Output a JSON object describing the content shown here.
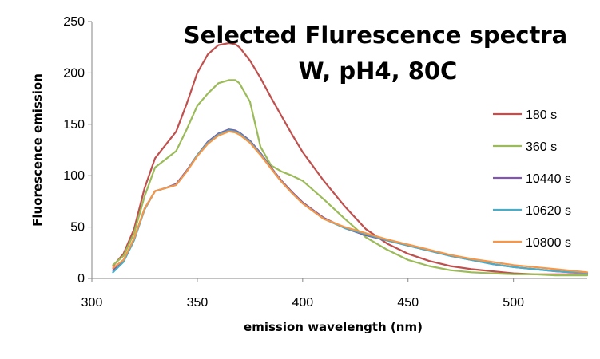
{
  "chart_data": {
    "type": "line",
    "title_lines": [
      "Selected Flurescence spectra",
      "W, pH4, 80C"
    ],
    "xlabel": "emission wavelength (nm)",
    "ylabel": "Fluorescence emission",
    "xlim": [
      300,
      535
    ],
    "ylim": [
      0,
      250
    ],
    "xticks": [
      300,
      350,
      400,
      450,
      500
    ],
    "yticks": [
      0,
      50,
      100,
      150,
      200,
      250
    ],
    "grid": false,
    "legend_position": "right",
    "series": [
      {
        "name": "180 s",
        "color": "#c0504d",
        "x": [
          310,
          315,
          320,
          325,
          330,
          335,
          340,
          345,
          350,
          355,
          360,
          365,
          368,
          370,
          375,
          380,
          385,
          390,
          395,
          400,
          410,
          420,
          430,
          440,
          450,
          460,
          470,
          480,
          490,
          500,
          510,
          520,
          535
        ],
        "y": [
          12,
          24,
          48,
          88,
          117,
          130,
          143,
          170,
          200,
          218,
          227,
          229,
          228,
          225,
          212,
          195,
          176,
          158,
          140,
          123,
          95,
          70,
          48,
          34,
          24,
          17,
          12,
          9,
          7,
          5,
          4,
          4,
          4
        ]
      },
      {
        "name": "360 s",
        "color": "#9bbb59",
        "x": [
          310,
          315,
          320,
          325,
          330,
          335,
          340,
          345,
          350,
          355,
          360,
          365,
          368,
          370,
          375,
          380,
          385,
          390,
          395,
          400,
          410,
          420,
          430,
          440,
          450,
          460,
          470,
          480,
          490,
          500,
          510,
          520,
          535
        ],
        "y": [
          13,
          22,
          44,
          80,
          108,
          116,
          124,
          145,
          168,
          180,
          190,
          193,
          193,
          190,
          172,
          128,
          110,
          104,
          100,
          95,
          77,
          58,
          40,
          28,
          18,
          12,
          8,
          6,
          5,
          4,
          4,
          3,
          3
        ]
      },
      {
        "name": "10440 s",
        "color": "#7f5aa2",
        "x": [
          310,
          315,
          320,
          325,
          330,
          335,
          340,
          345,
          350,
          355,
          360,
          365,
          368,
          370,
          375,
          380,
          385,
          390,
          395,
          400,
          410,
          420,
          430,
          440,
          450,
          460,
          470,
          480,
          490,
          500,
          510,
          520,
          535
        ],
        "y": [
          8,
          17,
          38,
          68,
          85,
          88,
          92,
          105,
          120,
          133,
          141,
          145,
          144,
          142,
          134,
          122,
          108,
          95,
          84,
          74,
          59,
          49,
          42,
          37,
          32,
          27,
          22,
          18,
          14,
          11,
          9,
          7,
          5
        ]
      },
      {
        "name": "10620 s",
        "color": "#4bacc6",
        "x": [
          310,
          315,
          320,
          325,
          330,
          335,
          340,
          345,
          350,
          355,
          360,
          365,
          368,
          370,
          375,
          380,
          385,
          390,
          395,
          400,
          410,
          420,
          430,
          440,
          450,
          460,
          470,
          480,
          490,
          500,
          510,
          520,
          535
        ],
        "y": [
          6,
          16,
          37,
          67,
          85,
          88,
          91,
          104,
          120,
          132,
          140,
          144,
          143,
          141,
          133,
          121,
          107,
          94,
          83,
          73,
          58,
          49,
          43,
          37,
          32,
          27,
          22,
          18,
          14,
          11,
          9,
          7,
          5
        ]
      },
      {
        "name": "10800 s",
        "color": "#f79646",
        "x": [
          310,
          315,
          320,
          325,
          330,
          335,
          340,
          345,
          350,
          355,
          360,
          365,
          368,
          370,
          375,
          380,
          385,
          390,
          395,
          400,
          410,
          420,
          430,
          440,
          450,
          460,
          470,
          480,
          490,
          500,
          510,
          520,
          535
        ],
        "y": [
          10,
          18,
          39,
          68,
          85,
          88,
          91,
          104,
          119,
          131,
          139,
          143,
          142,
          140,
          132,
          120,
          107,
          94,
          83,
          73,
          58,
          50,
          44,
          38,
          33,
          28,
          23,
          19,
          16,
          13,
          11,
          9,
          6
        ]
      }
    ]
  }
}
